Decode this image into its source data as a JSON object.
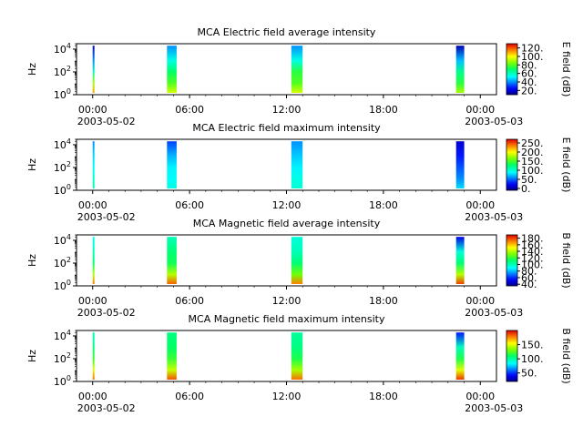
{
  "figure": {
    "panels": [
      {
        "title": "MCA  Electric field average intensity",
        "colorbar_label": "E field (dB)"
      },
      {
        "title": "MCA  Electric field maximum intensity",
        "colorbar_label": "E field (dB)"
      },
      {
        "title": "MCA  Magnetic field average intensity",
        "colorbar_label": "B field (dB)"
      },
      {
        "title": "MCA  Magnetic field maximum intensity",
        "colorbar_label": "B field (dB)"
      }
    ]
  },
  "chart_data": [
    {
      "type": "heatmap",
      "title": "MCA  Electric field average intensity",
      "xlabel": "",
      "ylabel": "Hz",
      "x_ticks": [
        "00:00",
        "06:00",
        "12:00",
        "18:00",
        "00:00"
      ],
      "x_date_start": "2003-05-02",
      "x_date_end": "2003-05-03",
      "xlim_hours": [
        -1,
        25
      ],
      "y_scale": "log",
      "ylim": [
        1,
        30000
      ],
      "y_ticks": [
        "10^0",
        "10^2",
        "10^4"
      ],
      "colorbar": {
        "label": "E field (dB)",
        "ticks": [
          "20.",
          "40.",
          "60.",
          "80.",
          "100.",
          "120."
        ],
        "range": [
          10,
          130
        ]
      },
      "segments": [
        {
          "start_hours": 0.0,
          "end_hours": 0.1,
          "profile": [
            [
              1,
              110
            ],
            [
              10,
              90
            ],
            [
              100,
              60
            ],
            [
              1000,
              40
            ],
            [
              20000,
              15
            ]
          ]
        },
        {
          "start_hours": 4.6,
          "end_hours": 5.2,
          "profile": [
            [
              1,
              95
            ],
            [
              10,
              80
            ],
            [
              100,
              70
            ],
            [
              1000,
              55
            ],
            [
              20000,
              40
            ]
          ]
        },
        {
          "start_hours": 12.3,
          "end_hours": 13.0,
          "profile": [
            [
              1,
              95
            ],
            [
              10,
              80
            ],
            [
              100,
              75
            ],
            [
              1000,
              55
            ],
            [
              20000,
              40
            ]
          ]
        },
        {
          "start_hours": 22.5,
          "end_hours": 23.0,
          "profile": [
            [
              1,
              90
            ],
            [
              10,
              75
            ],
            [
              100,
              65
            ],
            [
              1000,
              45
            ],
            [
              20000,
              15
            ]
          ]
        }
      ],
      "grid": false
    },
    {
      "type": "heatmap",
      "title": "MCA  Electric field maximum intensity",
      "xlabel": "",
      "ylabel": "Hz",
      "x_ticks": [
        "00:00",
        "06:00",
        "12:00",
        "18:00",
        "00:00"
      ],
      "x_date_start": "2003-05-02",
      "x_date_end": "2003-05-03",
      "xlim_hours": [
        -1,
        25
      ],
      "y_scale": "log",
      "ylim": [
        1,
        30000
      ],
      "y_ticks": [
        "10^0",
        "10^2",
        "10^4"
      ],
      "colorbar": {
        "label": "E field (dB)",
        "ticks": [
          "0.",
          "50.",
          "100.",
          "150.",
          "200.",
          "250."
        ],
        "range": [
          -10,
          270
        ]
      },
      "segments": [
        {
          "start_hours": 0.0,
          "end_hours": 0.1,
          "profile": [
            [
              1,
              110
            ],
            [
              10,
              100
            ],
            [
              100,
              90
            ],
            [
              1000,
              80
            ],
            [
              20000,
              60
            ]
          ]
        },
        {
          "start_hours": 4.6,
          "end_hours": 5.2,
          "profile": [
            [
              1,
              95
            ],
            [
              10,
              90
            ],
            [
              100,
              85
            ],
            [
              1000,
              70
            ],
            [
              20000,
              40
            ]
          ]
        },
        {
          "start_hours": 12.3,
          "end_hours": 13.0,
          "profile": [
            [
              1,
              100
            ],
            [
              10,
              95
            ],
            [
              100,
              85
            ],
            [
              1000,
              75
            ],
            [
              20000,
              60
            ]
          ]
        },
        {
          "start_hours": 22.5,
          "end_hours": 23.0,
          "profile": [
            [
              1,
              80
            ],
            [
              10,
              60
            ],
            [
              100,
              45
            ],
            [
              1000,
              30
            ],
            [
              20000,
              10
            ]
          ]
        }
      ],
      "grid": false
    },
    {
      "type": "heatmap",
      "title": "MCA  Magnetic field average intensity",
      "xlabel": "",
      "ylabel": "Hz",
      "x_ticks": [
        "00:00",
        "06:00",
        "12:00",
        "18:00",
        "00:00"
      ],
      "x_date_start": "2003-05-02",
      "x_date_end": "2003-05-03",
      "xlim_hours": [
        -1,
        25
      ],
      "y_scale": "log",
      "ylim": [
        1,
        30000
      ],
      "y_ticks": [
        "10^0",
        "10^2",
        "10^4"
      ],
      "colorbar": {
        "label": "B field (dB)",
        "ticks": [
          "40.",
          "60.",
          "80.",
          "100.",
          "120.",
          "140.",
          "160.",
          "180."
        ],
        "range": [
          35,
          190
        ]
      },
      "segments": [
        {
          "start_hours": 0.0,
          "end_hours": 0.1,
          "profile": [
            [
              1,
              170
            ],
            [
              10,
              140
            ],
            [
              100,
              110
            ],
            [
              1000,
              100
            ],
            [
              20000,
              90
            ]
          ]
        },
        {
          "start_hours": 4.6,
          "end_hours": 5.2,
          "profile": [
            [
              1,
              175
            ],
            [
              10,
              140
            ],
            [
              100,
              115
            ],
            [
              1000,
              110
            ],
            [
              20000,
              100
            ]
          ]
        },
        {
          "start_hours": 12.3,
          "end_hours": 13.0,
          "profile": [
            [
              1,
              170
            ],
            [
              10,
              130
            ],
            [
              100,
              110
            ],
            [
              1000,
              100
            ],
            [
              20000,
              95
            ]
          ]
        },
        {
          "start_hours": 22.5,
          "end_hours": 23.0,
          "profile": [
            [
              1,
              180
            ],
            [
              10,
              140
            ],
            [
              100,
              110
            ],
            [
              1000,
              95
            ],
            [
              20000,
              50
            ]
          ]
        }
      ],
      "grid": false
    },
    {
      "type": "heatmap",
      "title": "MCA  Magnetic field maximum intensity",
      "xlabel": "",
      "ylabel": "Hz",
      "x_ticks": [
        "00:00",
        "06:00",
        "12:00",
        "18:00",
        "00:00"
      ],
      "x_date_start": "2003-05-02",
      "x_date_end": "2003-05-03",
      "xlim_hours": [
        -1,
        25
      ],
      "y_scale": "log",
      "ylim": [
        1,
        30000
      ],
      "y_ticks": [
        "10^0",
        "10^2",
        "10^4"
      ],
      "colorbar": {
        "label": "B field (dB)",
        "ticks": [
          "50.",
          "100.",
          "150."
        ],
        "range": [
          20,
          200
        ]
      },
      "segments": [
        {
          "start_hours": 0.0,
          "end_hours": 0.1,
          "profile": [
            [
              1,
              180
            ],
            [
              10,
              150
            ],
            [
              100,
              120
            ],
            [
              1000,
              105
            ],
            [
              20000,
              95
            ]
          ]
        },
        {
          "start_hours": 4.6,
          "end_hours": 5.2,
          "profile": [
            [
              1,
              185
            ],
            [
              10,
              145
            ],
            [
              100,
              120
            ],
            [
              1000,
              110
            ],
            [
              20000,
              105
            ]
          ]
        },
        {
          "start_hours": 12.3,
          "end_hours": 13.0,
          "profile": [
            [
              1,
              180
            ],
            [
              10,
              140
            ],
            [
              100,
              115
            ],
            [
              1000,
              105
            ],
            [
              20000,
              100
            ]
          ]
        },
        {
          "start_hours": 22.5,
          "end_hours": 23.0,
          "profile": [
            [
              1,
              190
            ],
            [
              10,
              150
            ],
            [
              100,
              115
            ],
            [
              1000,
              95
            ],
            [
              20000,
              45
            ]
          ]
        }
      ],
      "grid": false
    }
  ]
}
